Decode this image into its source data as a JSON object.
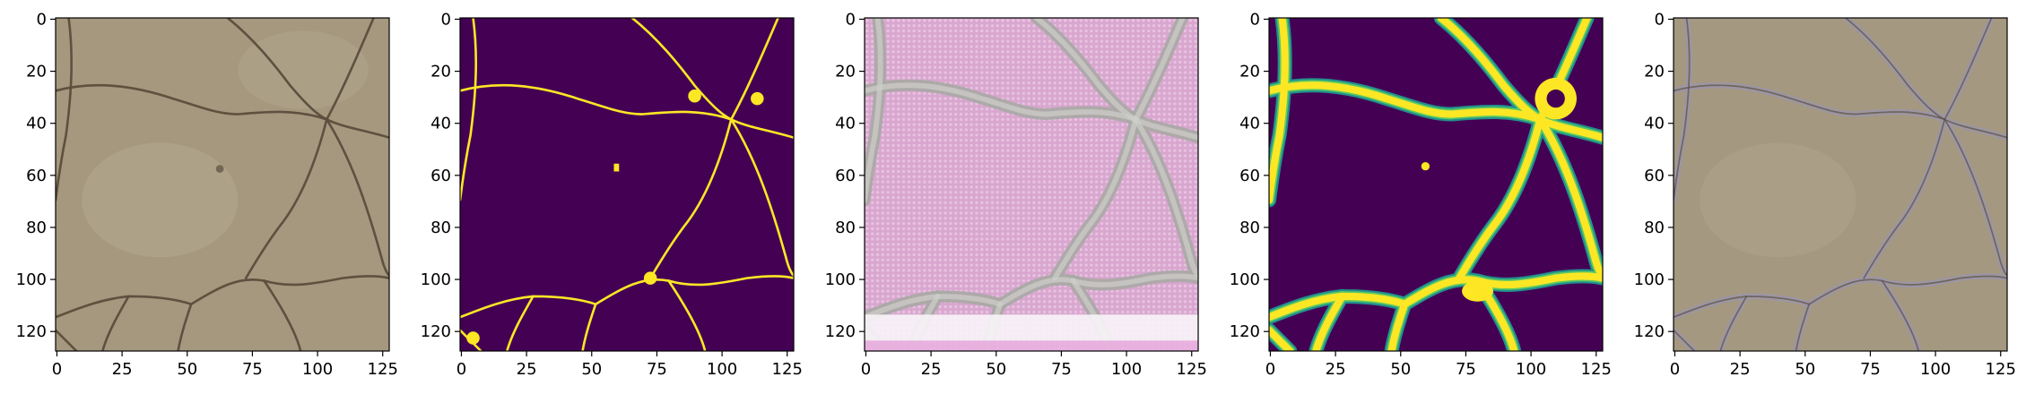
{
  "figure": {
    "panels": [
      {
        "kind": "photo",
        "cmap": "rgb",
        "colors": {
          "bg": "#a5987f",
          "light": "#b5a98f",
          "crack": "#5a4d3c"
        }
      },
      {
        "kind": "mask",
        "cmap": "viridis",
        "colors": {
          "bg": "#440154",
          "crack": "#fde725"
        }
      },
      {
        "kind": "generated",
        "cmap": "rgb",
        "colors": {
          "bg": "#d8a6cf",
          "texture": "#e8c2e0",
          "crack": "#a8a8a4",
          "bottom": "#f8f4f8"
        }
      },
      {
        "kind": "probability",
        "cmap": "viridis",
        "colors": {
          "bg": "#440154",
          "edge": "#21918c",
          "mid": "#5ec962",
          "crack": "#fde725"
        }
      },
      {
        "kind": "overlay",
        "cmap": "rgb",
        "colors": {
          "bg": "#a49880",
          "crack": "#9a96b0",
          "dark": "#5e5040"
        }
      }
    ],
    "axes": {
      "x_ticks": [
        "0",
        "25",
        "50",
        "75",
        "100",
        "125"
      ],
      "y_ticks": [
        "0",
        "20",
        "40",
        "60",
        "80",
        "100",
        "120"
      ],
      "xlim": [
        -0.5,
        127.5
      ],
      "ylim": [
        127.5,
        -0.5
      ]
    }
  }
}
